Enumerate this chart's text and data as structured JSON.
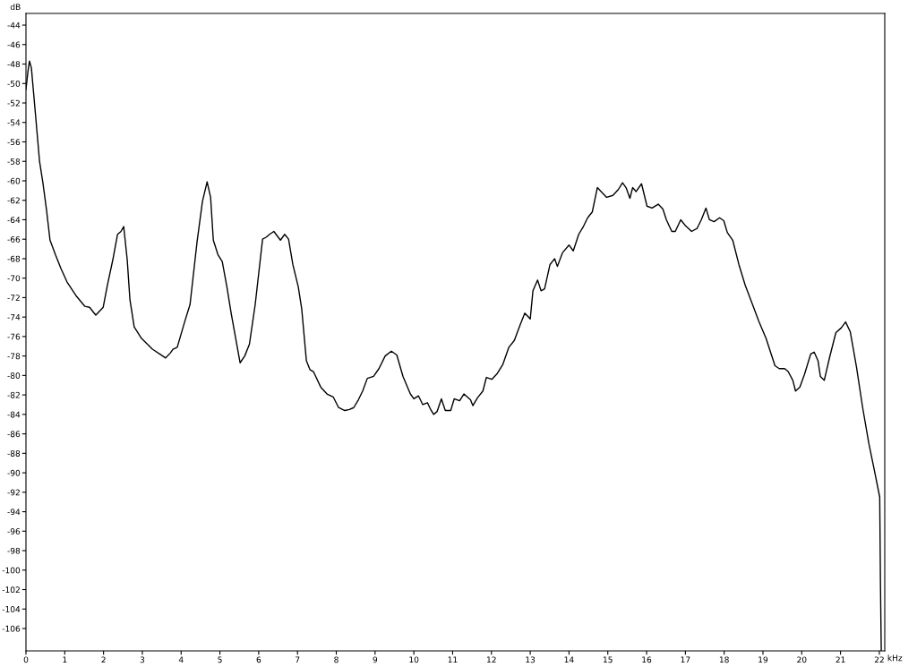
{
  "chart_data": {
    "type": "line",
    "xlabel": "kHz",
    "ylabel": "dB",
    "xlim": [
      0,
      22.14
    ],
    "ylim": [
      -108.3,
      -42.8
    ],
    "xticks": [
      0,
      1,
      2,
      3,
      4,
      5,
      6,
      7,
      8,
      9,
      10,
      11,
      12,
      13,
      14,
      15,
      16,
      17,
      18,
      19,
      20,
      21,
      22
    ],
    "yticks": [
      -106,
      -104,
      -102,
      -100,
      -98,
      -96,
      -94,
      -92,
      -90,
      -88,
      -86,
      -84,
      -82,
      -80,
      -78,
      -76,
      -74,
      -72,
      -70,
      -68,
      -66,
      -64,
      -62,
      -60,
      -58,
      -56,
      -54,
      -52,
      -50,
      -48,
      -46,
      -44
    ],
    "marker": "none",
    "line_style": "solid",
    "series": [
      {
        "color": "#000000",
        "x": [
          0,
          0.05,
          0.09,
          0.14,
          0.25,
          0.35,
          0.44,
          0.53,
          0.62,
          0.76,
          0.9,
          1.06,
          1.29,
          1.52,
          1.64,
          1.8,
          1.99,
          2.1,
          2.24,
          2.36,
          2.45,
          2.52,
          2.61,
          2.68,
          2.79,
          2.98,
          3.26,
          3.49,
          3.6,
          3.72,
          3.79,
          3.9,
          4.09,
          4.23,
          4.41,
          4.55,
          4.67,
          4.76,
          4.83,
          4.95,
          5.06,
          5.18,
          5.29,
          5.52,
          5.64,
          5.76,
          5.91,
          6.1,
          6.19,
          6.28,
          6.39,
          6.56,
          6.67,
          6.77,
          6.88,
          7.02,
          7.11,
          7.23,
          7.32,
          7.41,
          7.6,
          7.76,
          7.92,
          8.06,
          8.22,
          8.34,
          8.45,
          8.57,
          8.68,
          8.8,
          8.96,
          9.1,
          9.26,
          9.42,
          9.56,
          9.72,
          9.91,
          10,
          10.12,
          10.23,
          10.35,
          10.42,
          10.51,
          10.6,
          10.71,
          10.81,
          10.95,
          11.04,
          11.18,
          11.29,
          11.46,
          11.52,
          11.64,
          11.78,
          11.87,
          12.01,
          12.15,
          12.29,
          12.45,
          12.59,
          12.73,
          12.86,
          13,
          13.07,
          13.19,
          13.28,
          13.37,
          13.51,
          13.63,
          13.7,
          13.83,
          14,
          14.11,
          14.25,
          14.37,
          14.48,
          14.6,
          14.73,
          14.85,
          14.97,
          15.13,
          15.27,
          15.38,
          15.47,
          15.57,
          15.64,
          15.73,
          15.87,
          16.01,
          16.14,
          16.3,
          16.42,
          16.51,
          16.65,
          16.74,
          16.88,
          17,
          17.16,
          17.3,
          17.41,
          17.53,
          17.62,
          17.74,
          17.88,
          17.99,
          18.08,
          18.22,
          18.38,
          18.54,
          18.73,
          18.89,
          19.08,
          19.31,
          19.42,
          19.56,
          19.65,
          19.77,
          19.84,
          19.95,
          20.07,
          20.23,
          20.32,
          20.42,
          20.48,
          20.58,
          20.72,
          20.88,
          21.02,
          21.13,
          21.25,
          21.41,
          21.57,
          21.73,
          21.87,
          22.01,
          22.03,
          22.05
        ],
        "values": [
          -50.6,
          -48.8,
          -47.7,
          -48.4,
          -53.4,
          -58,
          -60.3,
          -63,
          -66.1,
          -67.6,
          -69,
          -70.4,
          -71.8,
          -72.9,
          -73,
          -73.8,
          -73,
          -70.7,
          -68.1,
          -65.5,
          -65.2,
          -64.7,
          -68.1,
          -72.2,
          -75,
          -76.2,
          -77.3,
          -77.9,
          -78.2,
          -77.7,
          -77.3,
          -77.1,
          -74.5,
          -72.7,
          -66.3,
          -62.1,
          -60.1,
          -61.7,
          -66.1,
          -67.6,
          -68.3,
          -70.9,
          -73.6,
          -78.7,
          -78,
          -76.8,
          -72.7,
          -66,
          -65.8,
          -65.5,
          -65.2,
          -66.1,
          -65.5,
          -66,
          -68.6,
          -70.9,
          -73.2,
          -78.5,
          -79.4,
          -79.6,
          -81.2,
          -81.9,
          -82.2,
          -83.3,
          -83.6,
          -83.5,
          -83.3,
          -82.5,
          -81.6,
          -80.3,
          -80.1,
          -79.3,
          -78,
          -77.5,
          -77.9,
          -80.1,
          -81.9,
          -82.4,
          -82.1,
          -83,
          -82.8,
          -83.4,
          -84,
          -83.7,
          -82.4,
          -83.6,
          -83.6,
          -82.4,
          -82.6,
          -81.9,
          -82.5,
          -83.1,
          -82.3,
          -81.6,
          -80.2,
          -80.4,
          -79.8,
          -78.9,
          -77.1,
          -76.4,
          -74.9,
          -73.6,
          -74.2,
          -71.3,
          -70.2,
          -71.3,
          -71.1,
          -68.6,
          -68,
          -68.8,
          -67.4,
          -66.6,
          -67.2,
          -65.5,
          -64.7,
          -63.8,
          -63.2,
          -60.7,
          -61.2,
          -61.7,
          -61.5,
          -60.9,
          -60.2,
          -60.7,
          -61.8,
          -60.7,
          -61.1,
          -60.3,
          -62.6,
          -62.8,
          -62.4,
          -62.9,
          -64,
          -65.2,
          -65.2,
          -64,
          -64.6,
          -65.2,
          -64.9,
          -64,
          -62.8,
          -64,
          -64.2,
          -63.8,
          -64.1,
          -65.3,
          -66.1,
          -68.6,
          -70.7,
          -72.7,
          -74.4,
          -76.2,
          -79,
          -79.3,
          -79.3,
          -79.6,
          -80.5,
          -81.6,
          -81.2,
          -79.9,
          -77.8,
          -77.6,
          -78.5,
          -80.1,
          -80.5,
          -78.1,
          -75.6,
          -75.1,
          -74.5,
          -75.5,
          -79.1,
          -83.3,
          -87,
          -89.7,
          -92.5,
          -101.7,
          -108.3
        ]
      }
    ]
  }
}
